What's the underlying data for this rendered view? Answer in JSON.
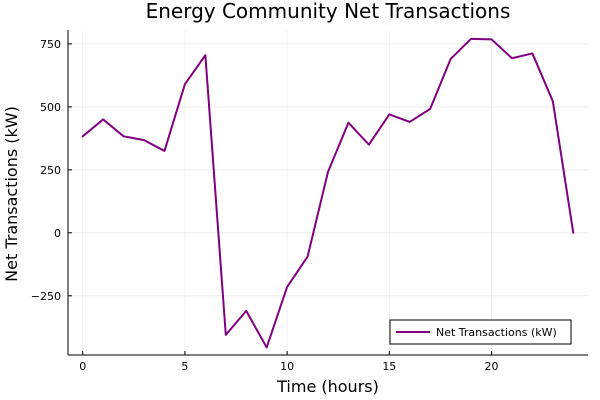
{
  "chart_data": {
    "type": "line",
    "title": "Energy Community Net Transactions",
    "xlabel": "Time (hours)",
    "ylabel": "Net Transactions (kW)",
    "x": [
      0,
      1,
      2,
      3,
      4,
      5,
      6,
      7,
      8,
      9,
      10,
      11,
      12,
      13,
      14,
      15,
      16,
      17,
      18,
      19,
      20,
      21,
      22,
      23,
      24
    ],
    "series": [
      {
        "name": "Net Transactions (kW)",
        "color": "#800080",
        "values": [
          383,
          450,
          383,
          368,
          325,
          590,
          705,
          -405,
          -310,
          -455,
          -215,
          -95,
          242,
          437,
          350,
          470,
          440,
          492,
          690,
          770,
          768,
          693,
          712,
          522,
          0
        ]
      }
    ],
    "xlim": [
      -0.72,
      24.72
    ],
    "ylim": [
      -485,
      805
    ],
    "xticks": [
      0,
      5,
      10,
      15,
      20
    ],
    "xtick_labels": [
      "0",
      "5",
      "10",
      "15",
      "20"
    ],
    "yticks": [
      -250,
      0,
      250,
      500,
      750
    ],
    "ytick_labels": [
      "−250",
      "0",
      "250",
      "500",
      "750"
    ],
    "grid": true,
    "legend_position": "bottom-right"
  }
}
